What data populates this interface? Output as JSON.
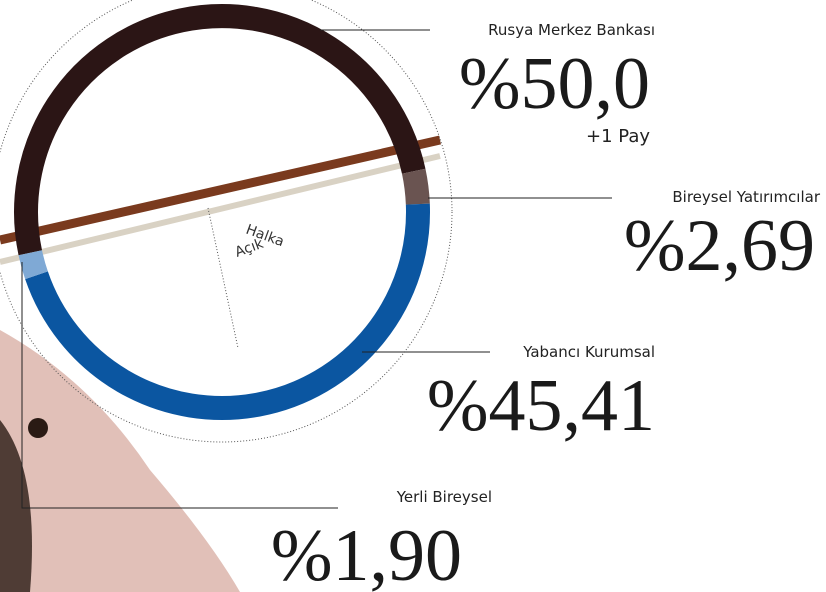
{
  "chart_data": {
    "type": "donut",
    "categories": [
      "Rusya Merkez Bankası",
      "Bireysel Yatırımcılar",
      "Yabancı Kurumsal",
      "Yerli Bireysel"
    ],
    "values": [
      50.0,
      2.69,
      45.41,
      1.9
    ],
    "value_labels": [
      "%50,0",
      "%2,69",
      "%45,41",
      "%1,90"
    ],
    "colors": [
      "#2b1515",
      "#6a5451",
      "#0b56a1",
      "#7fa9d5"
    ],
    "annotations": [
      "+1 Pay",
      "Halka",
      "Açık"
    ]
  }
}
